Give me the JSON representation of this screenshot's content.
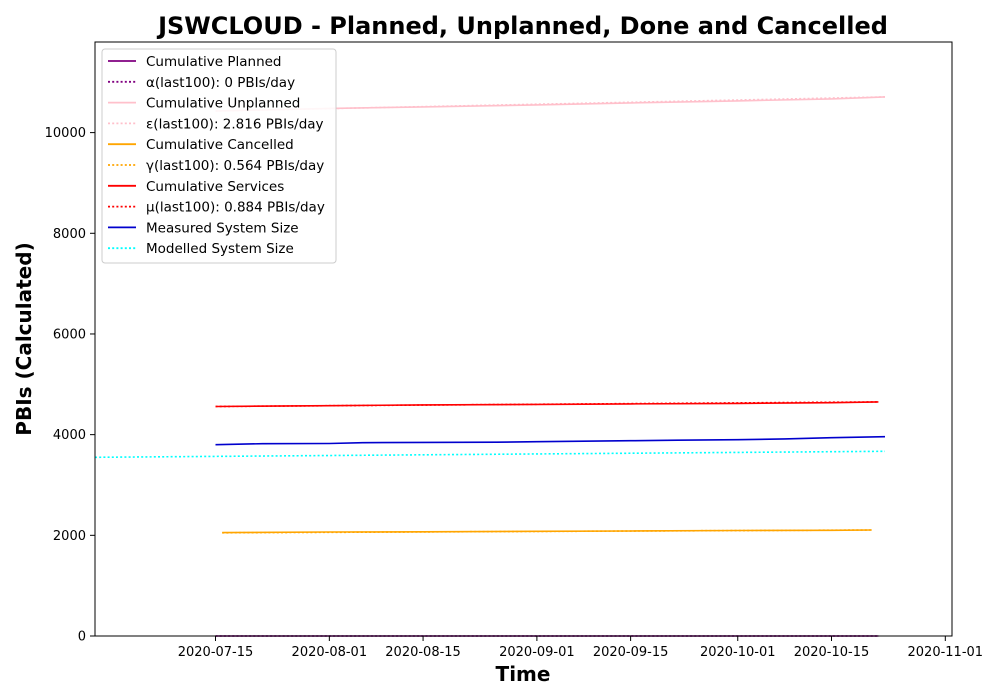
{
  "chart_data": {
    "type": "line",
    "title": "JSWCLOUD - Planned, Unplanned, Done  and Cancelled",
    "xlabel": "Time",
    "ylabel": "PBIs (Calculated)",
    "xlim": [
      "2020-06-27",
      "2020-11-02"
    ],
    "ylim": [
      0,
      11800
    ],
    "x_ticks": [
      "2020-07-15",
      "2020-08-01",
      "2020-08-15",
      "2020-09-01",
      "2020-09-15",
      "2020-10-01",
      "2020-10-15",
      "2020-11-01"
    ],
    "y_ticks": [
      0,
      2000,
      4000,
      6000,
      8000,
      10000
    ],
    "grid": false,
    "legend_position": "top-left",
    "series": [
      {
        "name": "Cumulative Planned",
        "color": "#800080",
        "style": "solid",
        "x": [
          "2020-07-15",
          "2020-10-22"
        ],
        "y": [
          0,
          0
        ]
      },
      {
        "name": "α(last100): 0 PBIs/day",
        "color": "#800080",
        "style": "dotted",
        "x": [
          "2020-07-15",
          "2020-10-22"
        ],
        "y": [
          0,
          0
        ]
      },
      {
        "name": "Cumulative Unplanned",
        "color": "#ffc0cb",
        "style": "solid",
        "x": [
          "2020-07-15",
          "2020-08-01",
          "2020-08-15",
          "2020-09-01",
          "2020-09-15",
          "2020-10-01",
          "2020-10-15",
          "2020-10-23"
        ],
        "y": [
          10430,
          10480,
          10510,
          10550,
          10590,
          10630,
          10670,
          10710
        ]
      },
      {
        "name": "ε(last100): 2.816 PBIs/day",
        "color": "#ffc0cb",
        "style": "dotted",
        "x": [
          "2020-07-15",
          "2020-10-23"
        ],
        "y": [
          10430,
          10710
        ]
      },
      {
        "name": "Cumulative Cancelled",
        "color": "#ffa500",
        "style": "solid",
        "x": [
          "2020-07-16",
          "2020-08-01",
          "2020-08-15",
          "2020-09-01",
          "2020-09-15",
          "2020-10-01",
          "2020-10-15",
          "2020-10-21"
        ],
        "y": [
          2055,
          2065,
          2070,
          2080,
          2085,
          2095,
          2100,
          2105
        ]
      },
      {
        "name": "γ(last100): 0.564 PBIs/day",
        "color": "#ffa500",
        "style": "dotted",
        "x": [
          "2020-07-16",
          "2020-10-21"
        ],
        "y": [
          2050,
          2105
        ]
      },
      {
        "name": "Cumulative Services",
        "color": "#ff0000",
        "style": "solid",
        "x": [
          "2020-07-15",
          "2020-08-01",
          "2020-08-15",
          "2020-09-01",
          "2020-09-15",
          "2020-10-01",
          "2020-10-15",
          "2020-10-22"
        ],
        "y": [
          4560,
          4575,
          4590,
          4600,
          4610,
          4620,
          4635,
          4650
        ]
      },
      {
        "name": "μ(last100): 0.884 PBIs/day",
        "color": "#ff0000",
        "style": "dotted",
        "x": [
          "2020-07-15",
          "2020-10-22"
        ],
        "y": [
          4560,
          4650
        ]
      },
      {
        "name": "Measured System Size",
        "color": "#0000cd",
        "style": "solid",
        "x": [
          "2020-07-15",
          "2020-07-22",
          "2020-08-01",
          "2020-08-06",
          "2020-08-15",
          "2020-08-26",
          "2020-09-01",
          "2020-09-08",
          "2020-09-15",
          "2020-09-22",
          "2020-10-01",
          "2020-10-08",
          "2020-10-15",
          "2020-10-23"
        ],
        "y": [
          3800,
          3820,
          3825,
          3840,
          3845,
          3850,
          3860,
          3870,
          3880,
          3890,
          3900,
          3915,
          3940,
          3960
        ]
      },
      {
        "name": "Modelled System Size",
        "color": "#00ffff",
        "style": "dotted",
        "x": [
          "2020-06-27",
          "2020-10-23"
        ],
        "y": [
          3550,
          3670
        ]
      }
    ]
  }
}
